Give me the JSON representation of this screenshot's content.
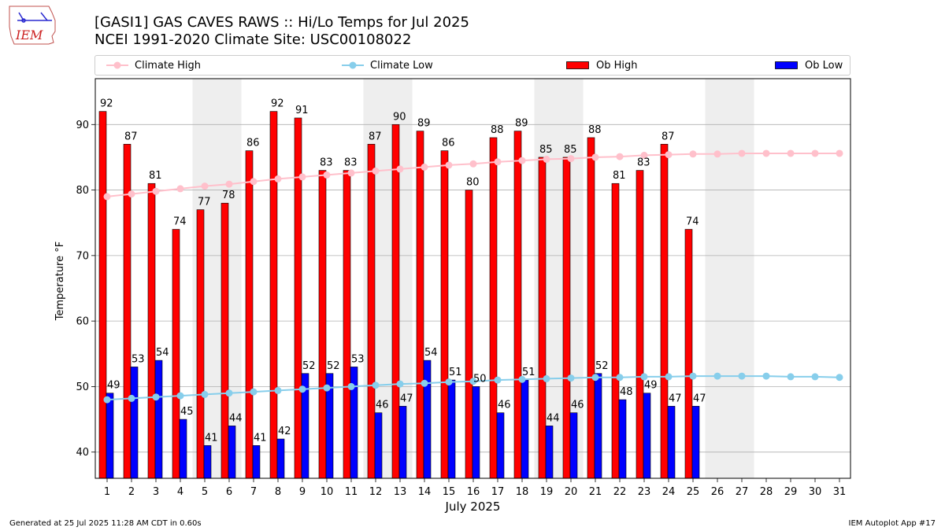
{
  "logo_text": "IEM",
  "title_line1": "[GASI1] GAS CAVES RAWS :: Hi/Lo Temps for Jul 2025",
  "title_line2": "NCEI 1991-2020 Climate Site: USC00108022",
  "legend": {
    "climate_high": "Climate High",
    "climate_low": "Climate Low",
    "ob_high": "Ob High",
    "ob_low": "Ob Low"
  },
  "colors": {
    "ob_high": "#ff0000",
    "ob_low": "#0000ff",
    "climate_high": "#ffc0cb",
    "climate_low": "#87ceeb",
    "weekend_shade": "#eeeeee"
  },
  "footer_left": "Generated at 25 Jul 2025 11:28 AM CDT in 0.60s",
  "footer_right": "IEM Autoplot App #17",
  "chart_data": {
    "type": "bar",
    "title": "[GASI1] GAS CAVES RAWS :: Hi/Lo Temps for Jul 2025",
    "xlabel": "July 2025",
    "ylabel": "Temperature °F",
    "ylim": [
      36,
      97
    ],
    "yticks": [
      40,
      50,
      60,
      70,
      80,
      90
    ],
    "grid": true,
    "days": [
      1,
      2,
      3,
      4,
      5,
      6,
      7,
      8,
      9,
      10,
      11,
      12,
      13,
      14,
      15,
      16,
      17,
      18,
      19,
      20,
      21,
      22,
      23,
      24,
      25,
      26,
      27,
      28,
      29,
      30,
      31
    ],
    "weekend_days": [
      5,
      6,
      12,
      13,
      19,
      20,
      26,
      27
    ],
    "series": [
      {
        "name": "Ob High",
        "values": [
          92,
          87,
          81,
          74,
          77,
          78,
          86,
          92,
          91,
          83,
          83,
          87,
          90,
          89,
          86,
          80,
          88,
          89,
          85,
          85,
          88,
          81,
          83,
          87,
          74
        ]
      },
      {
        "name": "Ob Low",
        "values": [
          49,
          53,
          54,
          45,
          41,
          44,
          41,
          42,
          52,
          52,
          53,
          46,
          47,
          54,
          51,
          50,
          46,
          51,
          44,
          46,
          52,
          48,
          49,
          47,
          47
        ]
      },
      {
        "name": "Climate High",
        "values": [
          79.0,
          79.4,
          79.8,
          80.2,
          80.6,
          80.9,
          81.3,
          81.7,
          82.0,
          82.3,
          82.6,
          82.9,
          83.2,
          83.5,
          83.8,
          84.0,
          84.3,
          84.5,
          84.7,
          84.8,
          85.0,
          85.1,
          85.3,
          85.4,
          85.5,
          85.5,
          85.6,
          85.6,
          85.6,
          85.6,
          85.6
        ]
      },
      {
        "name": "Climate Low",
        "values": [
          48.0,
          48.2,
          48.4,
          48.6,
          48.8,
          49.0,
          49.2,
          49.4,
          49.6,
          49.8,
          50.0,
          50.2,
          50.4,
          50.5,
          50.7,
          50.8,
          51.0,
          51.1,
          51.2,
          51.3,
          51.4,
          51.4,
          51.5,
          51.5,
          51.6,
          51.6,
          51.6,
          51.6,
          51.5,
          51.5,
          51.4
        ]
      }
    ]
  }
}
